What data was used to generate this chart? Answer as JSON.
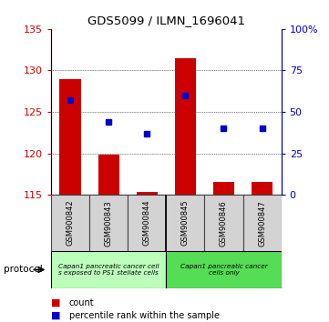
{
  "title": "GDS5099 / ILMN_1696041",
  "samples": [
    "GSM900842",
    "GSM900843",
    "GSM900844",
    "GSM900845",
    "GSM900846",
    "GSM900847"
  ],
  "bar_values": [
    129.0,
    119.8,
    115.4,
    131.5,
    116.5,
    116.5
  ],
  "bar_base": 115.0,
  "percentile_values": [
    57,
    44,
    37,
    60,
    40,
    40
  ],
  "ylim_left": [
    115,
    135
  ],
  "ylim_right": [
    0,
    100
  ],
  "yticks_left": [
    115,
    120,
    125,
    130,
    135
  ],
  "yticks_right": [
    0,
    25,
    50,
    75,
    100
  ],
  "ytick_labels_right": [
    "0",
    "25",
    "50",
    "75",
    "100%"
  ],
  "bar_color": "#cc0000",
  "percentile_color": "#0000cc",
  "group1_label": "Capan1 pancreatic cancer cell\ns exposed to PS1 stellate cells",
  "group2_label": "Capan1 pancreatic cancer\ncells only",
  "group1_color": "#bbffbb",
  "group2_color": "#55dd55",
  "protocol_label": "protocol",
  "legend_count_label": "count",
  "legend_percentile_label": "percentile rank within the sample",
  "ylabel_left_color": "#cc0000",
  "ylabel_right_color": "#0000cc",
  "sample_bg_color": "#d3d3d3",
  "sample_border_color": "#444444"
}
